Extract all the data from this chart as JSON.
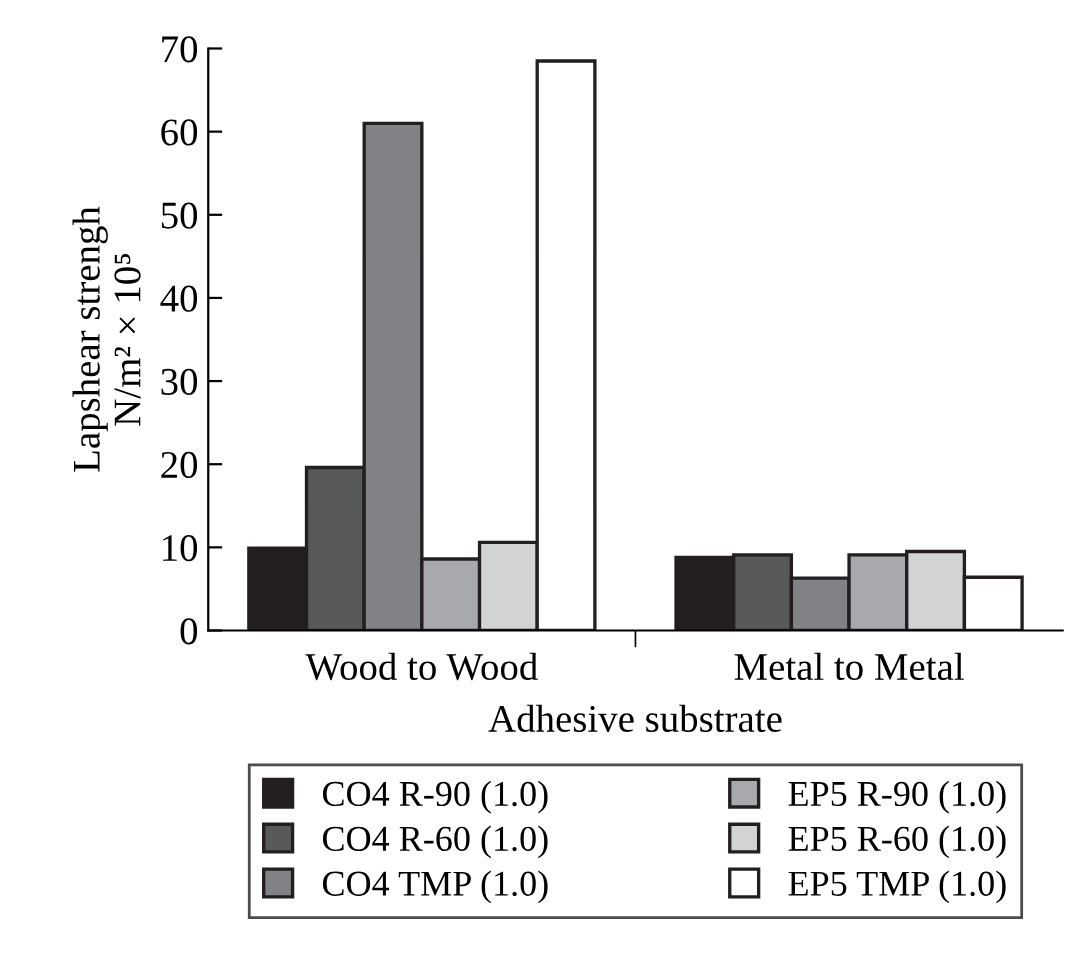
{
  "chart_data": {
    "type": "bar",
    "xlabel": "Adhesive substrate",
    "ylabel": "Lapshear strengh\nN/m² × 10⁵",
    "categories": [
      "Wood to Wood",
      "Metal to Metal"
    ],
    "series": [
      {
        "name": "CO4 R-90 (1.0)",
        "color": "#231f20",
        "values": [
          9.9,
          8.8
        ]
      },
      {
        "name": "CO4 R-60 (1.0)",
        "color": "#58595b",
        "values": [
          19.6,
          9.1
        ]
      },
      {
        "name": "CO4 TMP (1.0)",
        "color": "#808285",
        "values": [
          61.0,
          6.3
        ]
      },
      {
        "name": "EP5 R-90 (1.0)",
        "color": "#a7a9ac",
        "values": [
          8.6,
          9.1
        ]
      },
      {
        "name": "EP5 R-60 (1.0)",
        "color": "#d1d3d4",
        "values": [
          10.6,
          9.5
        ]
      },
      {
        "name": "EP5 TMP (1.0)",
        "color": "#ffffff",
        "values": [
          68.5,
          6.4
        ]
      }
    ],
    "ylim": [
      0,
      70
    ],
    "yticks": [
      0,
      10,
      20,
      30,
      40,
      50,
      60,
      70
    ],
    "grid": false,
    "legend": "bottom"
  }
}
